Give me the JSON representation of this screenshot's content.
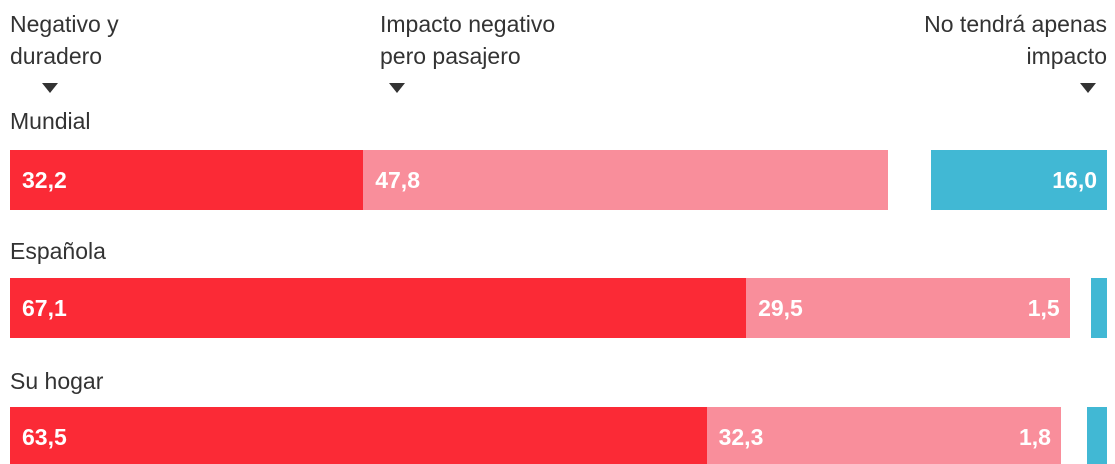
{
  "chart_data": {
    "type": "stacked-bar",
    "categories": [
      "Mundial",
      "Española",
      "Su hogar"
    ],
    "series": [
      {
        "name": "Negativo y duradero",
        "color": "#fb2a36",
        "values": [
          32.2,
          67.1,
          63.5
        ],
        "value_labels": [
          "32,2",
          "67,1",
          "63,5"
        ]
      },
      {
        "name": "Impacto negativo pero pasajero",
        "color": "#f98e9b",
        "values": [
          47.8,
          29.5,
          32.3
        ],
        "value_labels": [
          "47,8",
          "29,5",
          "32,3"
        ]
      },
      {
        "name": "No tendrá apenas impacto",
        "color": "#41b8d4",
        "values": [
          16.0,
          1.5,
          1.8
        ],
        "value_labels": [
          "16,0",
          "1,5",
          "1,8"
        ]
      }
    ]
  }
}
